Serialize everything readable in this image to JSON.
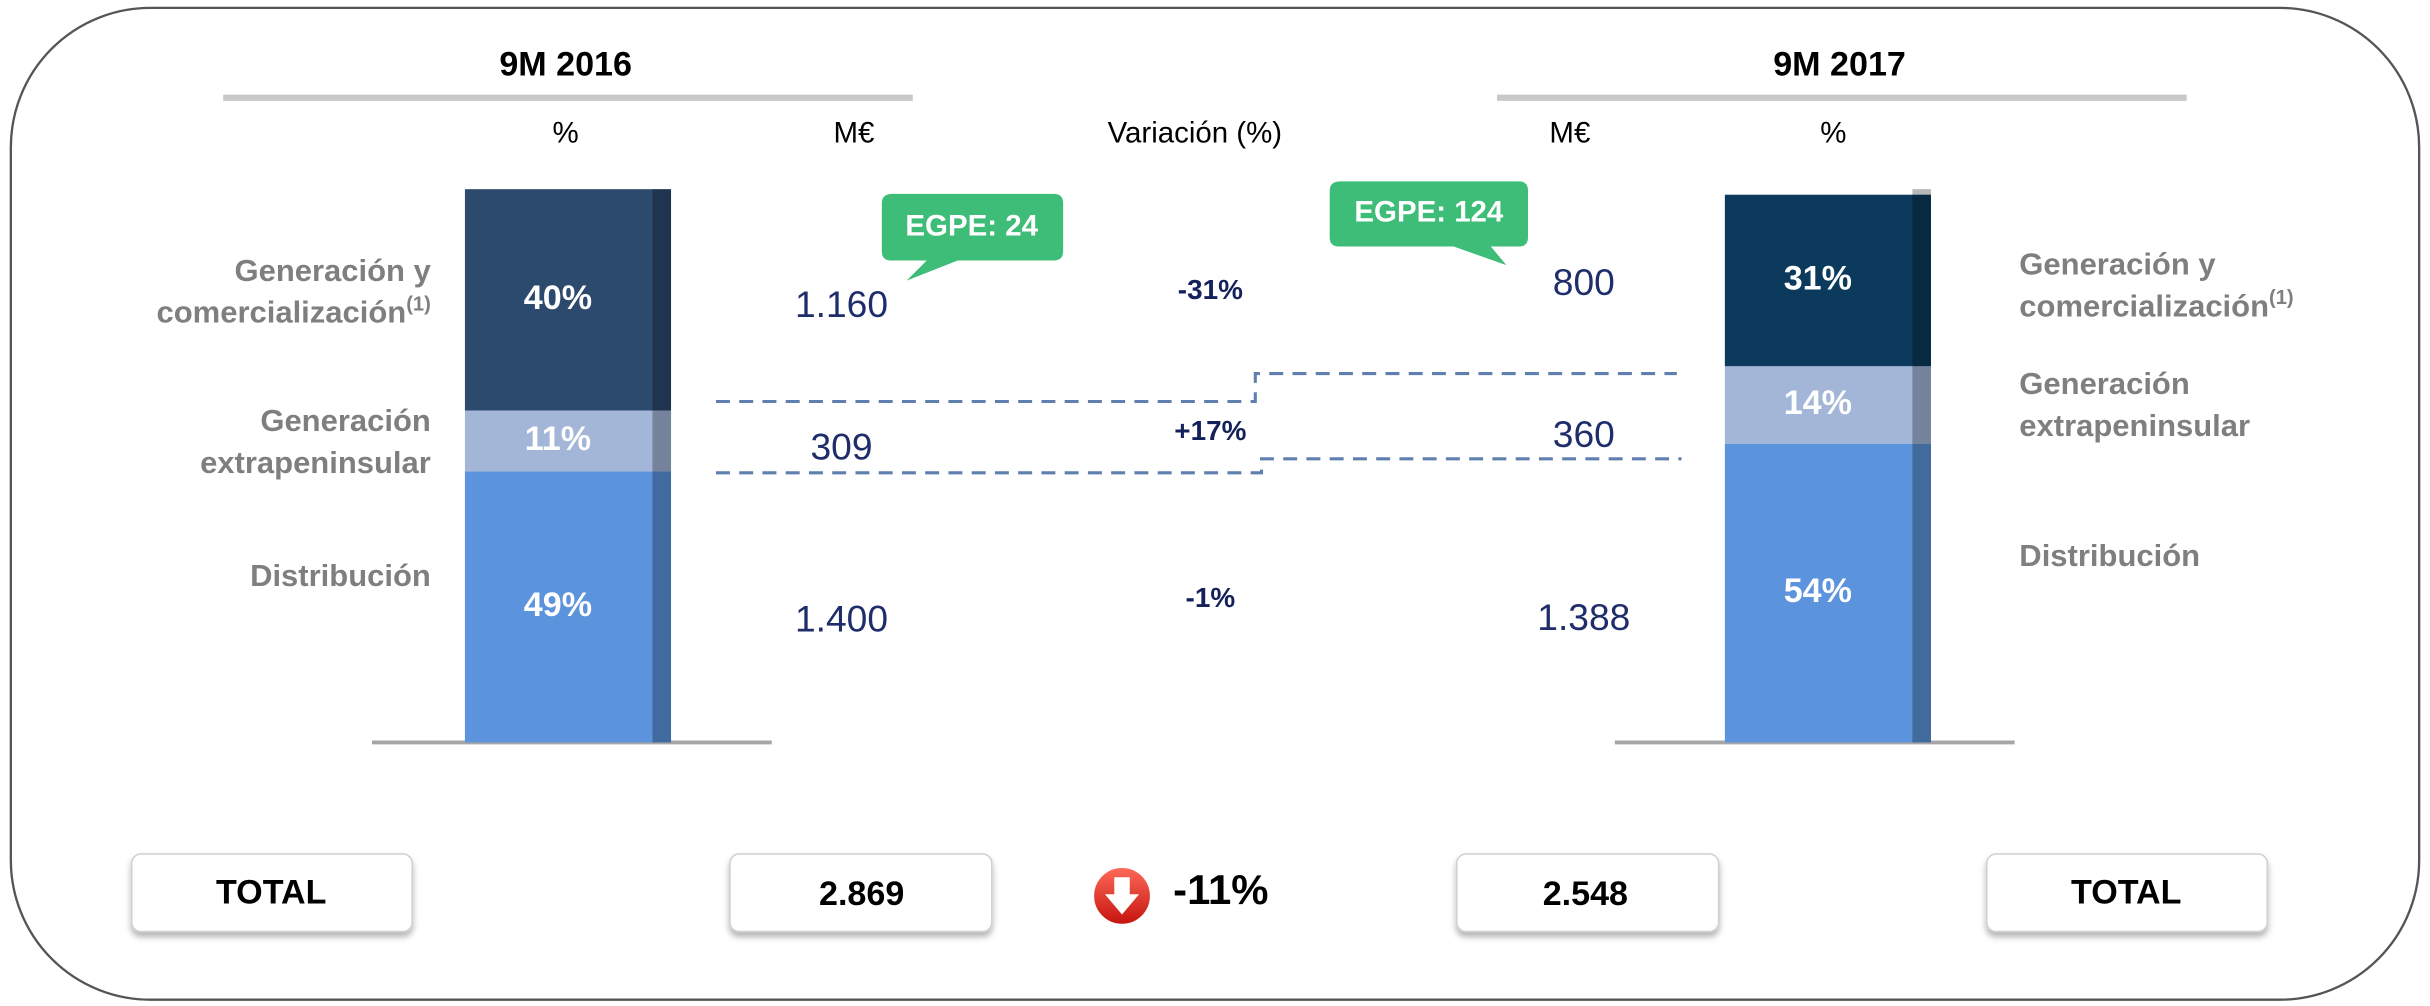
{
  "chart_data": {
    "type": "stacked_bar",
    "categories": [
      "9M 2016",
      "9M 2017"
    ],
    "column_headers": {
      "share": "%",
      "amount": "M€",
      "change": "Variación (%)"
    },
    "ylim": [
      0,
      100
    ],
    "series": [
      {
        "name": "Distribución",
        "color": "#5b93dc",
        "values": [
          49,
          54
        ],
        "value_labels": [
          "49%",
          "54%"
        ],
        "amounts": [
          1400,
          1388
        ],
        "amount_labels": [
          "1.400",
          "1.388"
        ],
        "change": -1,
        "change_label": "-1%"
      },
      {
        "name": "Generación extrapeninsular",
        "color": "#a4b6d8",
        "values": [
          11,
          14
        ],
        "value_labels": [
          "11%",
          "14%"
        ],
        "amounts": [
          309,
          360
        ],
        "change": 17,
        "change_label": "+17%"
      },
      {
        "name": "Generación y comercialización",
        "name_note": "(1)",
        "color": "#2c4a6e",
        "colors_by_bar": [
          "#2c4a6e",
          "#0b3a5c"
        ],
        "values": [
          40,
          31
        ],
        "value_labels": [
          "40%",
          "31%"
        ],
        "amounts": [
          1160,
          800
        ],
        "amount_labels": [
          "1.160",
          "800"
        ],
        "change": -31,
        "change_label": "-31%"
      }
    ],
    "annotations": [
      "EGPE: 24",
      "EGPE: 124"
    ],
    "totals": {
      "label": "TOTAL",
      "values": [
        2869,
        2548
      ],
      "value_labels": [
        "2.869",
        "2.548"
      ],
      "change": -11,
      "change_label": "-11%"
    }
  }
}
